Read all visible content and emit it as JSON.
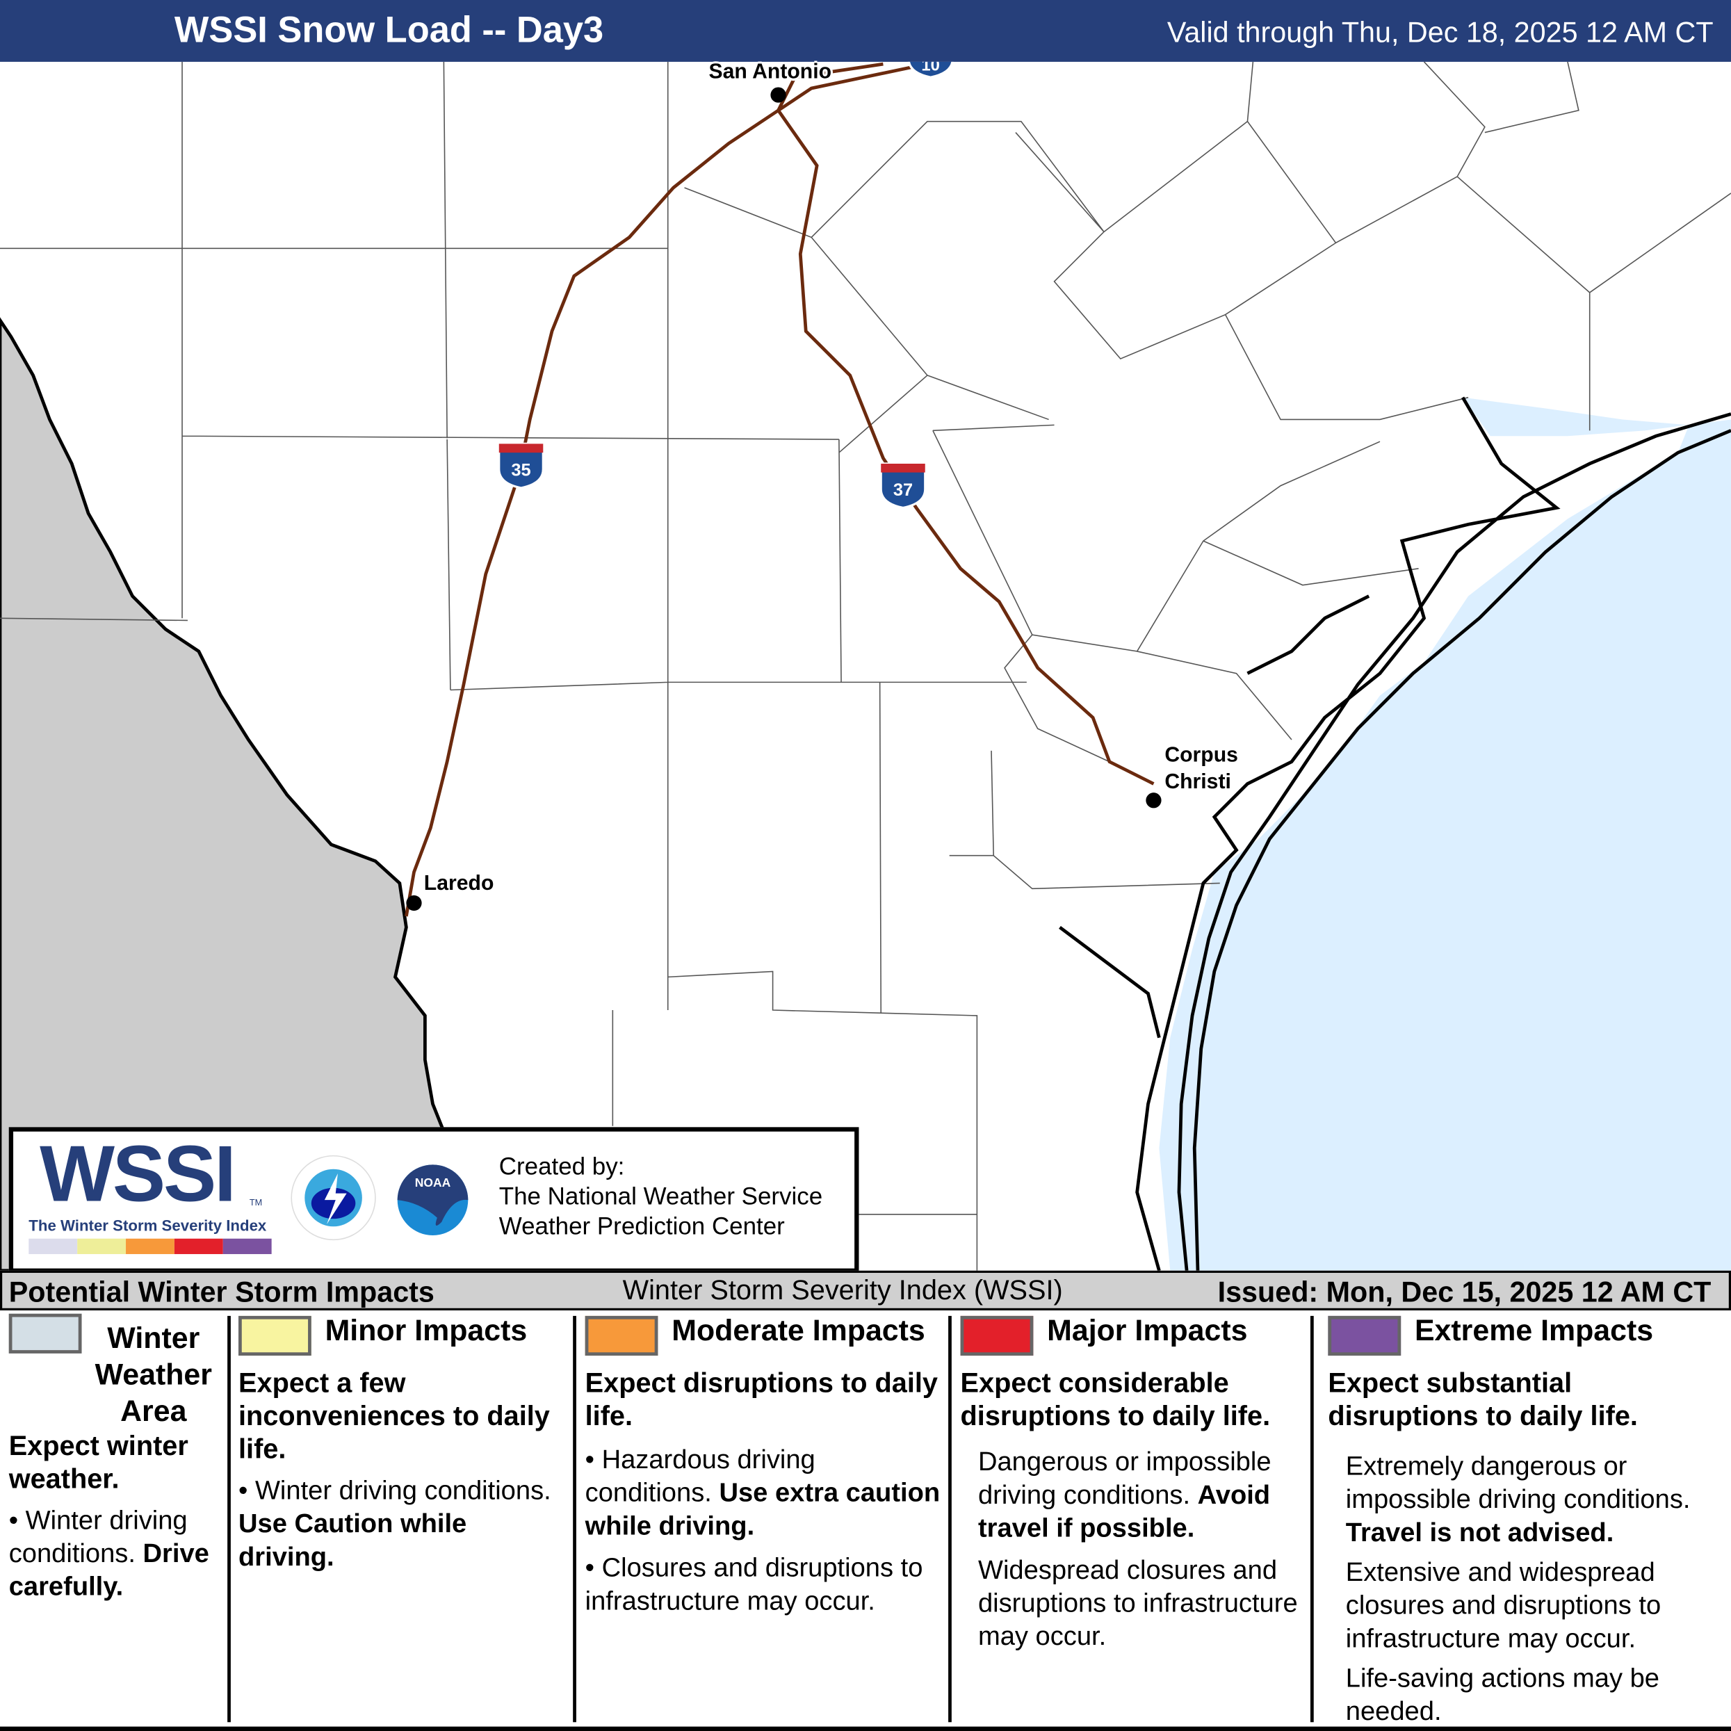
{
  "header": {
    "title": "WSSI Snow Load -- Day3",
    "valid": "Valid through Thu, Dec 18, 2025 12 AM CT"
  },
  "map": {
    "cities": [
      "San Antonio",
      "Laredo",
      "Corpus",
      "Christi"
    ],
    "highways": [
      "35",
      "37",
      "10"
    ],
    "colors": {
      "land": "#ffffff",
      "mexico": "#cccccc",
      "water": "#dcefff",
      "highway": "#6b2a0e",
      "shield": "#1f4e96",
      "shield_top": "#c8272d"
    }
  },
  "logo": {
    "wssi": "WSSI",
    "tm": "TM",
    "tagline": "The Winter Storm Severity Index",
    "nws": "NATIONAL WEATHER SERVICE",
    "noaa": "NOAA",
    "created_by": "Created by:",
    "org1": "The National Weather Service",
    "org2": "Weather Prediction Center",
    "scale_colors": [
      "#dcdcec",
      "#eeee99",
      "#f7993a",
      "#e3202a",
      "#7b52a0"
    ]
  },
  "bar": {
    "left": "Potential Winter Storm Impacts",
    "center": "Winter Storm Severity Index (WSSI)",
    "right": "Issued: Mon, Dec 15, 2025 12 AM CT"
  },
  "legend": [
    {
      "title": "Winter Weather Area",
      "title_lines": [
        "Winter",
        "Weather",
        "Area"
      ],
      "color": "#d4dfe6",
      "expect": "Expect winter weather.",
      "items": [
        {
          "text": "Winter driving conditions.",
          "bold": "Drive carefully."
        }
      ]
    },
    {
      "title": "Minor Impacts",
      "color": "#f8f4a0",
      "expect": "Expect a few inconveniences to daily life.",
      "items": [
        {
          "text": "Winter driving conditions.",
          "bold": "Use Caution while driving."
        }
      ]
    },
    {
      "title": "Moderate Impacts",
      "color": "#f7993a",
      "expect": "Expect disruptions to daily life.",
      "items": [
        {
          "text": "Hazardous driving conditions.",
          "bold": "Use extra caution while driving."
        },
        {
          "text": "Closures and disruptions to infrastructure may occur.",
          "bold": ""
        }
      ]
    },
    {
      "title": "Major Impacts",
      "color": "#e3202a",
      "expect": "Expect considerable disruptions to daily life.",
      "items": [
        {
          "text": "Dangerous or impossible driving conditions.",
          "bold": "Avoid travel if possible."
        },
        {
          "text": "Widespread closures and disruptions to infrastructure may occur.",
          "bold": ""
        }
      ]
    },
    {
      "title": "Extreme Impacts",
      "color": "#7b52a0",
      "expect": "Expect substantial disruptions to daily life.",
      "items": [
        {
          "text": "Extremely dangerous or impossible driving conditions.",
          "bold": "Travel is not advised."
        },
        {
          "text": "Extensive and widespread closures and disruptions to infrastructure may occur.",
          "bold": ""
        },
        {
          "text": "Life-saving actions may be needed.",
          "bold": ""
        }
      ]
    }
  ]
}
